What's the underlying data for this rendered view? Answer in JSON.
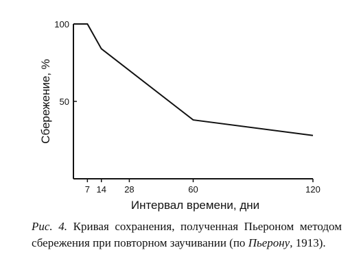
{
  "chart_data": {
    "type": "line",
    "xlabel": "Интервал времени, дни",
    "ylabel": "Сбережение, %",
    "x_ticks": [
      7,
      14,
      28,
      60,
      120
    ],
    "y_ticks": [
      50,
      100
    ],
    "xlim": [
      0,
      120
    ],
    "ylim": [
      0,
      100
    ],
    "grid": false,
    "series": [
      {
        "x": [
          0,
          7,
          14,
          60,
          120
        ],
        "y": [
          100,
          100,
          84,
          38,
          28
        ]
      }
    ]
  },
  "caption": {
    "label": "Рис. 4.",
    "text_before": " Кривая сохранения, полученная Пьероном методом сбережения при повторном заучивании (по ",
    "author": "Пьерону",
    "text_after": ", 1913)."
  },
  "colors": {
    "ink": "#111111",
    "background": "#ffffff"
  }
}
